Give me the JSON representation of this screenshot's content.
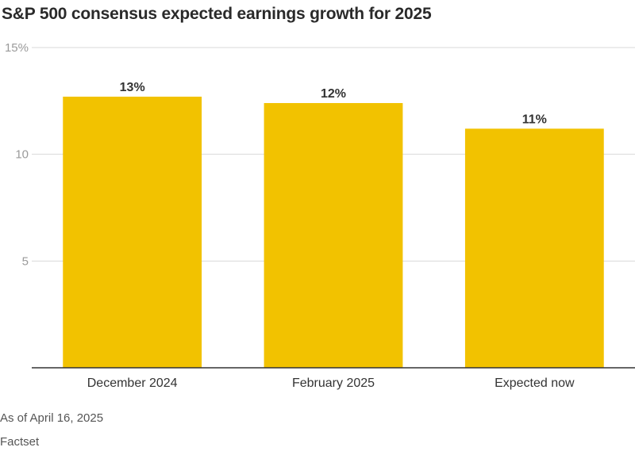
{
  "chart_data": {
    "type": "bar",
    "title": "S&P 500 consensus expected earnings growth for 2025",
    "categories": [
      "December 2024",
      "February 2025",
      "Expected now"
    ],
    "values": [
      12.7,
      12.4,
      11.2
    ],
    "data_labels": [
      "13%",
      "12%",
      "11%"
    ],
    "yticks": [
      5,
      10,
      15
    ],
    "ytick_labels": [
      "5",
      "10",
      "15%"
    ],
    "ylim": [
      0,
      15
    ],
    "xlabel": "",
    "ylabel": "",
    "grid": true,
    "colors": {
      "bar": "#f2c200",
      "grid": "#d9d9d9",
      "axis": "#333333"
    }
  },
  "footer": {
    "note": "As of April 16, 2025",
    "source": "Factset"
  }
}
